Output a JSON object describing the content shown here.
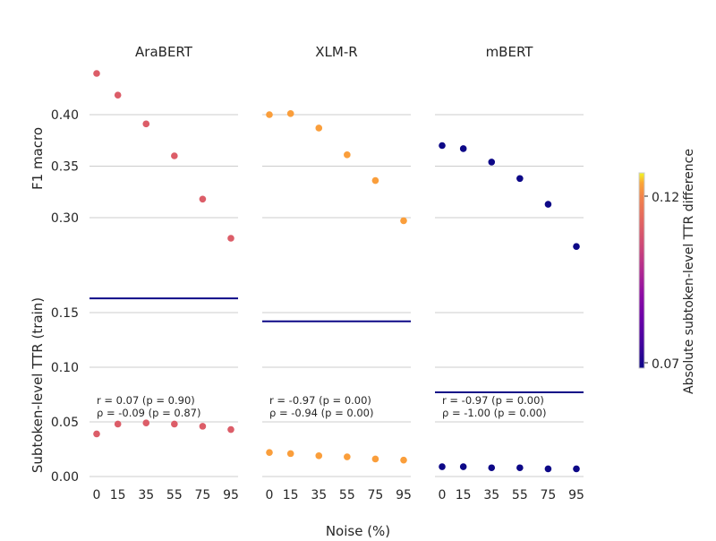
{
  "chart_data": {
    "type": "scatter",
    "x_categories": [
      "0",
      "15",
      "35",
      "55",
      "75",
      "95"
    ],
    "x_values": [
      0,
      15,
      35,
      55,
      75,
      95
    ],
    "xlabel": "Noise (%)",
    "top_ylabel": "F1 macro",
    "top_yticks": [
      "0.30",
      "0.35",
      "0.40"
    ],
    "top_ylim": [
      0.245,
      0.445
    ],
    "bottom_ylabel": "Subtoken-level TTR (train)",
    "bottom_yticks": [
      "0.00",
      "0.05",
      "0.10",
      "0.15"
    ],
    "bottom_ylim": [
      0.0,
      0.17
    ],
    "colorbar": {
      "label": "Absolute subtoken-level TTR difference",
      "ticks": [
        "0.07",
        "0.12"
      ],
      "range": [
        0.069,
        0.129
      ],
      "colormap": "plasma"
    },
    "grid": true,
    "panels": [
      {
        "title": "AraBERT",
        "color_value": 0.112,
        "f1": [
          0.44,
          0.419,
          0.391,
          0.36,
          0.318,
          0.28
        ],
        "ttr": [
          0.039,
          0.048,
          0.049,
          0.048,
          0.046,
          0.043
        ],
        "ref_line": 0.163,
        "annotation_r": "r = 0.07 (p = 0.90)",
        "annotation_rho": "ρ = -0.09 (p = 0.87)"
      },
      {
        "title": "XLM-R",
        "color_value": 0.125,
        "f1": [
          0.4,
          0.401,
          0.387,
          0.361,
          0.336,
          0.297
        ],
        "ttr": [
          0.022,
          0.021,
          0.019,
          0.018,
          0.016,
          0.015
        ],
        "ref_line": 0.142,
        "annotation_r": "r = -0.97 (p = 0.00)",
        "annotation_rho": "ρ = -0.94 (p = 0.00)"
      },
      {
        "title": "mBERT",
        "color_value": 0.069,
        "f1": [
          0.37,
          0.367,
          0.354,
          0.338,
          0.313,
          0.272
        ],
        "ttr": [
          0.009,
          0.009,
          0.008,
          0.008,
          0.007,
          0.007
        ],
        "ref_line": 0.077,
        "annotation_r": "r = -0.97 (p = 0.00)",
        "annotation_rho": "ρ = -1.00 (p = 0.00)"
      }
    ]
  },
  "colors": {
    "grid": "#cccccc",
    "ref_line": "#0d0887",
    "text": "#262626"
  }
}
